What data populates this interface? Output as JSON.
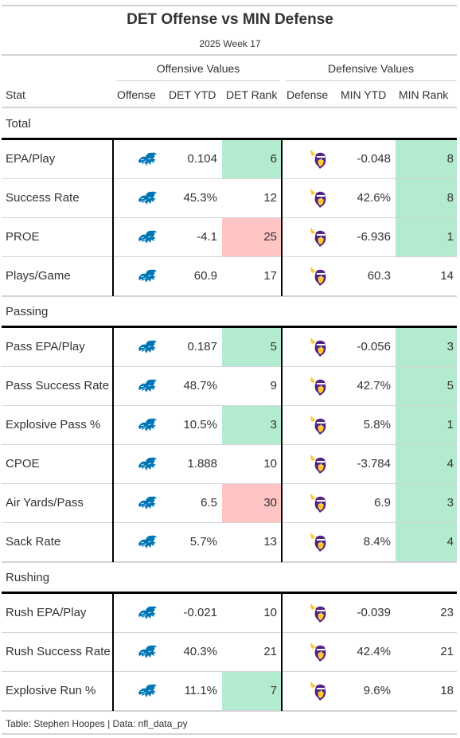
{
  "title": "DET Offense vs MIN Defense",
  "subtitle": "2025 Week 17",
  "spanners": {
    "offense": "Offensive Values",
    "defense": "Defensive Values"
  },
  "columns": [
    "Stat",
    "Offense",
    "DET YTD",
    "DET Rank",
    "Defense",
    "MIN YTD",
    "MIN Rank"
  ],
  "colors": {
    "good": "#b3ebd0",
    "bad": "#ffc4c4",
    "lions_blue": "#0076b6",
    "vikings_purple": "#4f2683",
    "vikings_gold": "#ffc62f"
  },
  "icons": {
    "offense": "detroit-lions-logo-icon",
    "defense": "minnesota-vikings-logo-icon"
  },
  "groups": [
    {
      "label": "Total",
      "rows": [
        {
          "stat": "EPA/Play",
          "det_ytd": "0.104",
          "det_rank": "6",
          "det_tone": "good",
          "min_ytd": "-0.048",
          "min_rank": "8",
          "min_tone": "good"
        },
        {
          "stat": "Success Rate",
          "det_ytd": "45.3%",
          "det_rank": "12",
          "det_tone": "",
          "min_ytd": "42.6%",
          "min_rank": "8",
          "min_tone": "good"
        },
        {
          "stat": "PROE",
          "det_ytd": "-4.1",
          "det_rank": "25",
          "det_tone": "bad",
          "min_ytd": "-6.936",
          "min_rank": "1",
          "min_tone": "good"
        },
        {
          "stat": "Plays/Game",
          "det_ytd": "60.9",
          "det_rank": "17",
          "det_tone": "",
          "min_ytd": "60.3",
          "min_rank": "14",
          "min_tone": ""
        }
      ]
    },
    {
      "label": "Passing",
      "rows": [
        {
          "stat": "Pass EPA/Play",
          "det_ytd": "0.187",
          "det_rank": "5",
          "det_tone": "good",
          "min_ytd": "-0.056",
          "min_rank": "3",
          "min_tone": "good"
        },
        {
          "stat": "Pass Success Rate",
          "det_ytd": "48.7%",
          "det_rank": "9",
          "det_tone": "",
          "min_ytd": "42.7%",
          "min_rank": "5",
          "min_tone": "good"
        },
        {
          "stat": "Explosive Pass %",
          "det_ytd": "10.5%",
          "det_rank": "3",
          "det_tone": "good",
          "min_ytd": "5.8%",
          "min_rank": "1",
          "min_tone": "good"
        },
        {
          "stat": "CPOE",
          "det_ytd": "1.888",
          "det_rank": "10",
          "det_tone": "",
          "min_ytd": "-3.784",
          "min_rank": "4",
          "min_tone": "good"
        },
        {
          "stat": "Air Yards/Pass",
          "det_ytd": "6.5",
          "det_rank": "30",
          "det_tone": "bad",
          "min_ytd": "6.9",
          "min_rank": "3",
          "min_tone": "good"
        },
        {
          "stat": "Sack Rate",
          "det_ytd": "5.7%",
          "det_rank": "13",
          "det_tone": "",
          "min_ytd": "8.4%",
          "min_rank": "4",
          "min_tone": "good"
        }
      ]
    },
    {
      "label": "Rushing",
      "rows": [
        {
          "stat": "Rush EPA/Play",
          "det_ytd": "-0.021",
          "det_rank": "10",
          "det_tone": "",
          "min_ytd": "-0.039",
          "min_rank": "23",
          "min_tone": ""
        },
        {
          "stat": "Rush Success Rate",
          "det_ytd": "40.3%",
          "det_rank": "21",
          "det_tone": "",
          "min_ytd": "42.4%",
          "min_rank": "21",
          "min_tone": ""
        },
        {
          "stat": "Explosive Run %",
          "det_ytd": "11.1%",
          "det_rank": "7",
          "det_tone": "good",
          "min_ytd": "9.6%",
          "min_rank": "18",
          "min_tone": ""
        }
      ]
    }
  ],
  "footer": "Table: Stephen Hoopes | Data: nfl_data_py"
}
